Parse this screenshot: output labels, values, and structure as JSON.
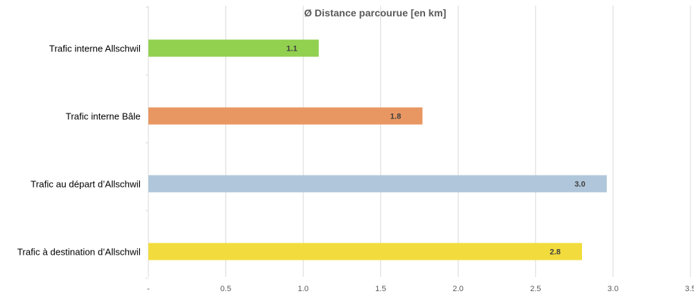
{
  "chart_data": {
    "type": "bar",
    "orientation": "horizontal",
    "title": "Ø Distance parcourue [en km]",
    "categories": [
      "Trafic interne Allschwil",
      "Trafic interne Bâle",
      "Trafic au départ d’Allschwil",
      "Trafic à destination d’Allschwil"
    ],
    "values": [
      1.1,
      1.8,
      3.0,
      2.8
    ],
    "bar_values": [
      1.1,
      1.77,
      2.96,
      2.8
    ],
    "data_labels": [
      "1.1",
      "1.8",
      "3.0",
      "2.8"
    ],
    "colors": [
      "#92D050",
      "#E99762",
      "#B0C7DB",
      "#F2DC3D"
    ],
    "xlim": [
      0,
      3.5
    ],
    "x_ticks": [
      "-",
      "0.5",
      "1.0",
      "1.5",
      "2.0",
      "2.5",
      "3.0",
      "3.5"
    ],
    "xlabel": "",
    "ylabel": "",
    "grid": "vertical",
    "legend": "none"
  }
}
